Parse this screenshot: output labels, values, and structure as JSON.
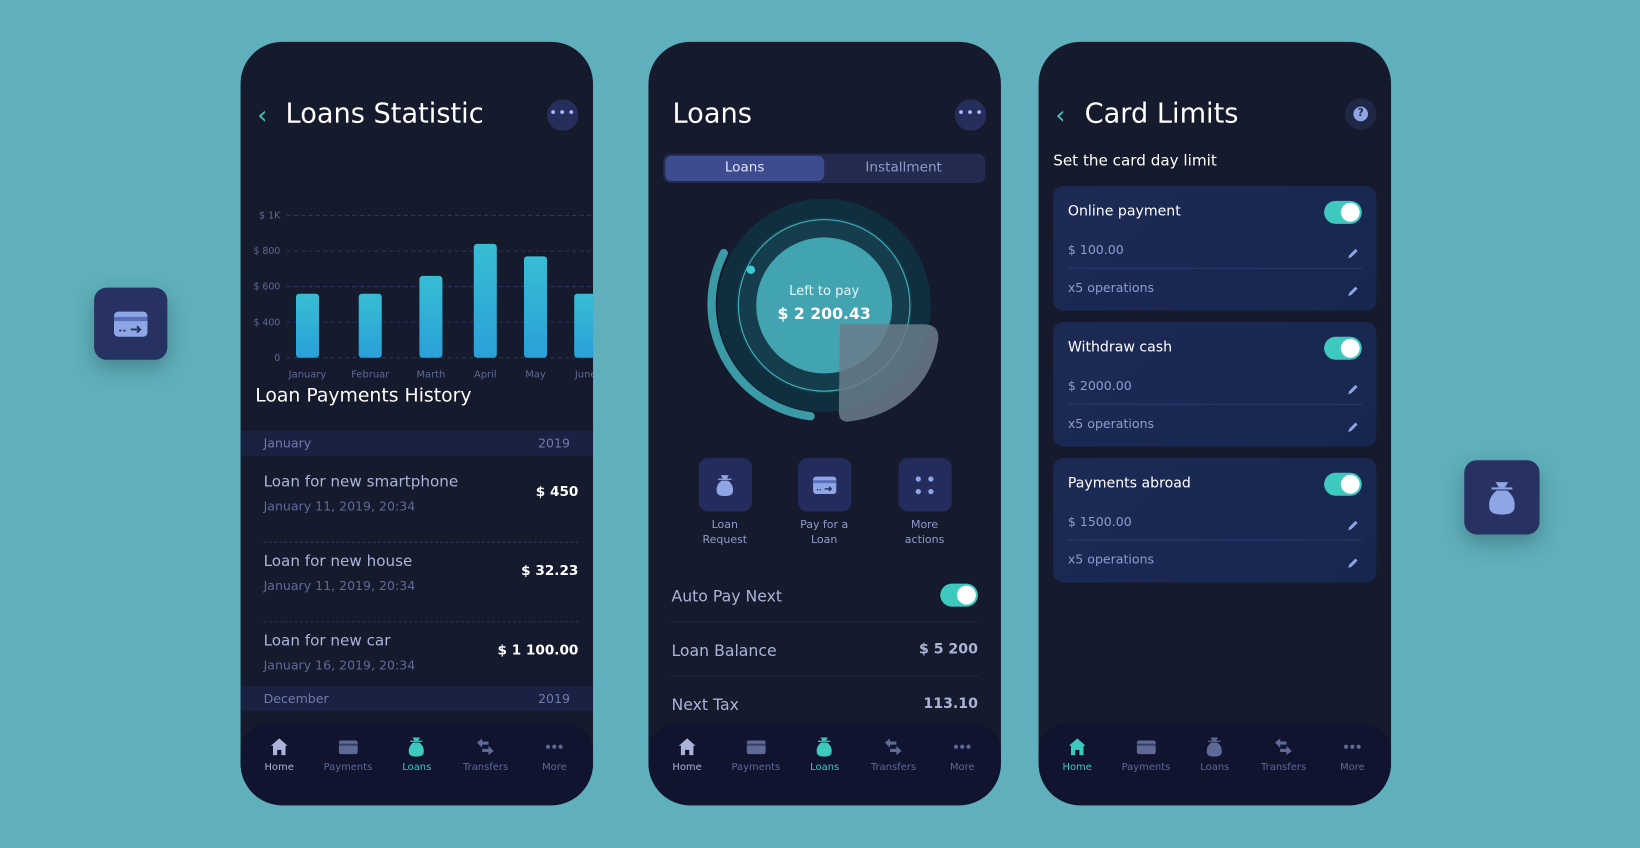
{
  "colors": {
    "background": "#5fb0bc",
    "phone": "#151a2c",
    "accent": "#3ec9bf",
    "bar": "#33b4d6"
  },
  "screen1": {
    "title": "Loans Statistic",
    "more_icon": "more-dots-icon",
    "chart_data": {
      "type": "bar",
      "categories": [
        "January",
        "Februar",
        "Marth",
        "April",
        "May",
        "June"
      ],
      "values": [
        560,
        560,
        660,
        840,
        770,
        560
      ],
      "y_ticks": [
        0,
        400,
        600,
        800,
        1000
      ],
      "y_tick_labels": [
        "0",
        "$ 400",
        "$ 600",
        "$ 800",
        "$ 1K"
      ],
      "ylim": [
        0,
        1000
      ],
      "grid": true
    },
    "history_title": "Loan Payments History",
    "groups": [
      {
        "month": "January",
        "year": "2019"
      },
      {
        "month": "December",
        "year": "2019"
      }
    ],
    "items": [
      {
        "title": "Loan for new smartphone",
        "date": "January 11, 2019, 20:34",
        "amount": "$ 450"
      },
      {
        "title": "Loan for new house",
        "date": "January 11, 2019, 20:34",
        "amount": "$ 32.23"
      },
      {
        "title": "Loan for new car",
        "date": "January 16, 2019, 20:34",
        "amount": "$ 1 100.00"
      }
    ]
  },
  "screen2": {
    "title": "Loans",
    "tabs": [
      "Loans",
      "Installment"
    ],
    "left_label": "Left to pay",
    "left_value": "$ 2 200.43",
    "actions": [
      {
        "l1": "Loan",
        "l2": "Request"
      },
      {
        "l1": "Pay for a",
        "l2": "Loan"
      },
      {
        "l1": "More",
        "l2": "actions"
      }
    ],
    "auto_pay": "Auto Pay Next",
    "auto_pay_on": true,
    "balance_label": "Loan Balance",
    "balance_value": "$ 5 200",
    "tax_label": "Next Tax",
    "tax_value": "113.10"
  },
  "screen3": {
    "title": "Card Limits",
    "subtitle": "Set the card day limit",
    "cards": [
      {
        "name": "Online payment",
        "amount": "$ 100.00",
        "ops": "x5 operations",
        "on": true
      },
      {
        "name": "Withdraw cash",
        "amount": "$ 2000.00",
        "ops": "x5 operations",
        "on": true
      },
      {
        "name": "Payments abroad",
        "amount": "$ 1500.00",
        "ops": "x5 operations",
        "on": true
      }
    ]
  },
  "nav": [
    "Home",
    "Payments",
    "Loans",
    "Transfers",
    "More"
  ]
}
